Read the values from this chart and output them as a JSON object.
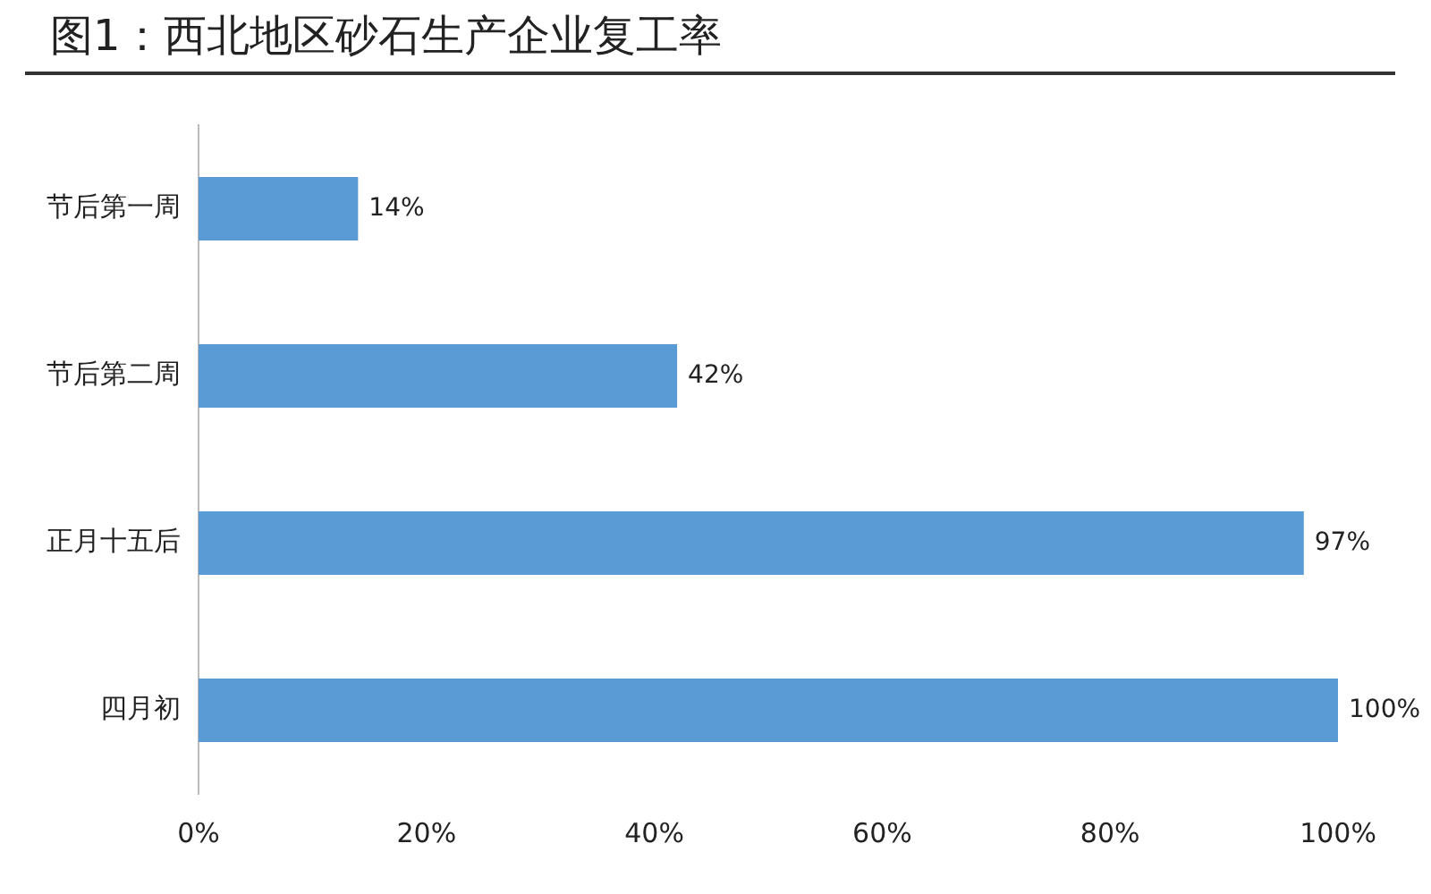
{
  "chart_data": {
    "type": "bar",
    "orientation": "horizontal",
    "title": "图1：西北地区砂石生产企业复工率",
    "categories": [
      "节后第一周",
      "节后第二周",
      "正月十五后",
      "四月初"
    ],
    "values": [
      14,
      42,
      97,
      100
    ],
    "color": "#5b9bd5",
    "value_labels": [
      "14%",
      "42%",
      "97%",
      "100%"
    ],
    "xlim": [
      0,
      100
    ],
    "xticks": [
      {
        "value": 0,
        "label": "0%"
      },
      {
        "value": 20,
        "label": "20%"
      },
      {
        "value": 40,
        "label": "40%"
      },
      {
        "value": 60,
        "label": "60%"
      },
      {
        "value": 80,
        "label": "80%"
      },
      {
        "value": 100,
        "label": "100%"
      }
    ],
    "grid": false,
    "legend": false
  }
}
